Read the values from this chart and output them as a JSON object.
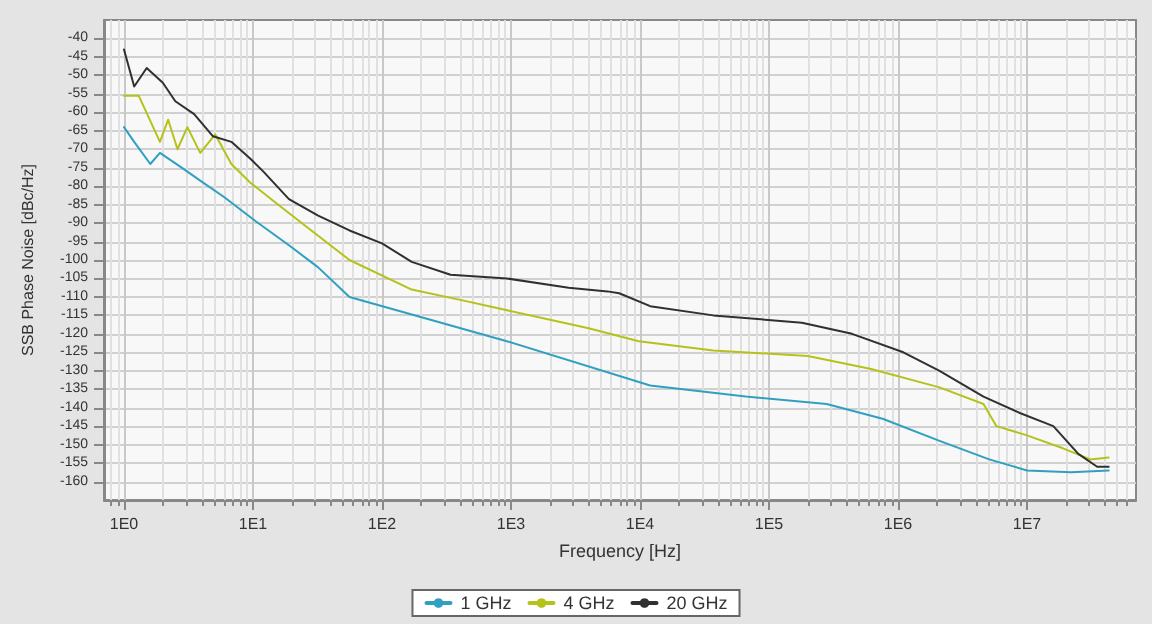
{
  "chart_data": {
    "type": "line",
    "xlabel": "Frequency [Hz]",
    "ylabel": "SSB Phase Noise [dBc/Hz]",
    "log": "x",
    "grid": true,
    "legend": "bottom",
    "marker": "none",
    "line_style": "solid",
    "xlim": [
      0.7,
      70000000
    ],
    "xticks": [
      {
        "value": 1,
        "label": "1E0"
      },
      {
        "value": 10,
        "label": "1E1"
      },
      {
        "value": 100,
        "label": "1E2"
      },
      {
        "value": 1000,
        "label": "1E3"
      },
      {
        "value": 10000,
        "label": "1E4"
      },
      {
        "value": 100000,
        "label": "1E5"
      },
      {
        "value": 1000000,
        "label": "1E6"
      },
      {
        "value": 10000000,
        "label": "1E7"
      }
    ],
    "ylim": [
      -165,
      -35
    ],
    "yticks": [
      -40,
      -45,
      -50,
      -55,
      -60,
      -65,
      -70,
      -75,
      -80,
      -85,
      -90,
      -95,
      -100,
      -105,
      -110,
      -115,
      -120,
      -125,
      -130,
      -135,
      -140,
      -145,
      -150,
      -155,
      -160
    ],
    "series": [
      {
        "name": "1 GHz",
        "color": "#2fa0c0",
        "x": [
          1,
          1.2,
          1.6,
          1.9,
          2.8,
          3.9,
          6,
          10.5,
          19,
          32,
          56,
          930,
          12000,
          66000,
          280000,
          760000,
          2100000,
          5100000,
          10000000,
          22000000,
          43000000
        ],
        "values": [
          -64,
          -68,
          -74,
          -71,
          -75,
          -78.5,
          -83,
          -89.5,
          -96,
          -102,
          -110,
          -122,
          -134,
          -137,
          -139,
          -143,
          -149,
          -154,
          -157,
          -157.5,
          -157
        ]
      },
      {
        "name": "4 GHz",
        "color": "#b5c21a",
        "x": [
          1,
          1.3,
          1.9,
          2.2,
          2.6,
          3.1,
          3.9,
          5.1,
          6.8,
          9.5,
          15,
          26,
          56,
          170,
          430,
          4000,
          9800,
          37000,
          200000,
          620000,
          2100000,
          4600000,
          5800000,
          10000000,
          19000000,
          31000000,
          43000000
        ],
        "values": [
          -55.5,
          -55.5,
          -68,
          -62,
          -70,
          -64,
          -71,
          -66,
          -74,
          -79,
          -84.5,
          -91,
          -100,
          -108,
          -111,
          -118.5,
          -122,
          -124.5,
          -126,
          -129.5,
          -134.5,
          -139,
          -145,
          -147.5,
          -151,
          -154,
          -153.5
        ]
      },
      {
        "name": "20 GHz",
        "color": "#303030",
        "x": [
          1,
          1.2,
          1.5,
          2,
          2.5,
          3.5,
          4.9,
          6.8,
          9.5,
          12,
          19,
          32,
          56,
          100,
          170,
          340,
          930,
          2800,
          5600,
          6900,
          12000,
          37000,
          180000,
          440000,
          1100000,
          2100000,
          4600000,
          8900000,
          16000000,
          25000000,
          35000000,
          43000000
        ],
        "values": [
          -43,
          -53,
          -48,
          -52,
          -57,
          -60.5,
          -66.5,
          -68,
          -72.5,
          -76,
          -83.5,
          -88,
          -92,
          -95.5,
          -100.5,
          -104,
          -105,
          -107.5,
          -108.5,
          -109,
          -112.5,
          -115,
          -117,
          -120,
          -125,
          -130,
          -137,
          -141.5,
          -145,
          -152.5,
          -156,
          -156
        ]
      }
    ]
  }
}
